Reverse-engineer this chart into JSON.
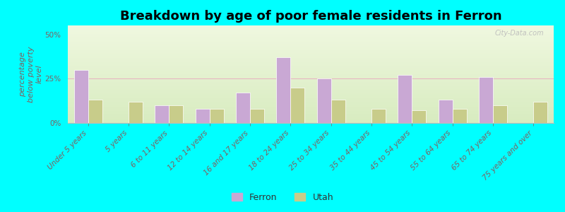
{
  "title": "Breakdown by age of poor female residents in Ferron",
  "ylabel": "percentage\nbelow poverty\nlevel",
  "categories": [
    "Under 5 years",
    "5 years",
    "6 to 11 years",
    "12 to 14 years",
    "16 and 17 years",
    "18 to 24 years",
    "25 to 34 years",
    "35 to 44 years",
    "45 to 54 years",
    "55 to 64 years",
    "65 to 74 years",
    "75 years and over"
  ],
  "ferron_values": [
    30,
    0,
    10,
    8,
    17,
    37,
    25,
    0,
    27,
    13,
    26,
    0
  ],
  "utah_values": [
    13,
    12,
    10,
    8,
    8,
    20,
    13,
    8,
    7,
    8,
    10,
    12
  ],
  "ferron_color": "#c9a8d4",
  "utah_color": "#c8cc8a",
  "background_top": "#d8ecc0",
  "background_bottom": "#f0f8e0",
  "outer_background": "#00ffff",
  "ylim": [
    0,
    55
  ],
  "yticks": [
    0,
    25,
    50
  ],
  "ytick_labels": [
    "0%",
    "25%",
    "50%"
  ],
  "bar_width": 0.35,
  "title_fontsize": 13,
  "axis_label_fontsize": 8,
  "tick_fontsize": 7.5,
  "legend_labels": [
    "Ferron",
    "Utah"
  ],
  "watermark": "City-Data.com",
  "label_color": "#806060"
}
